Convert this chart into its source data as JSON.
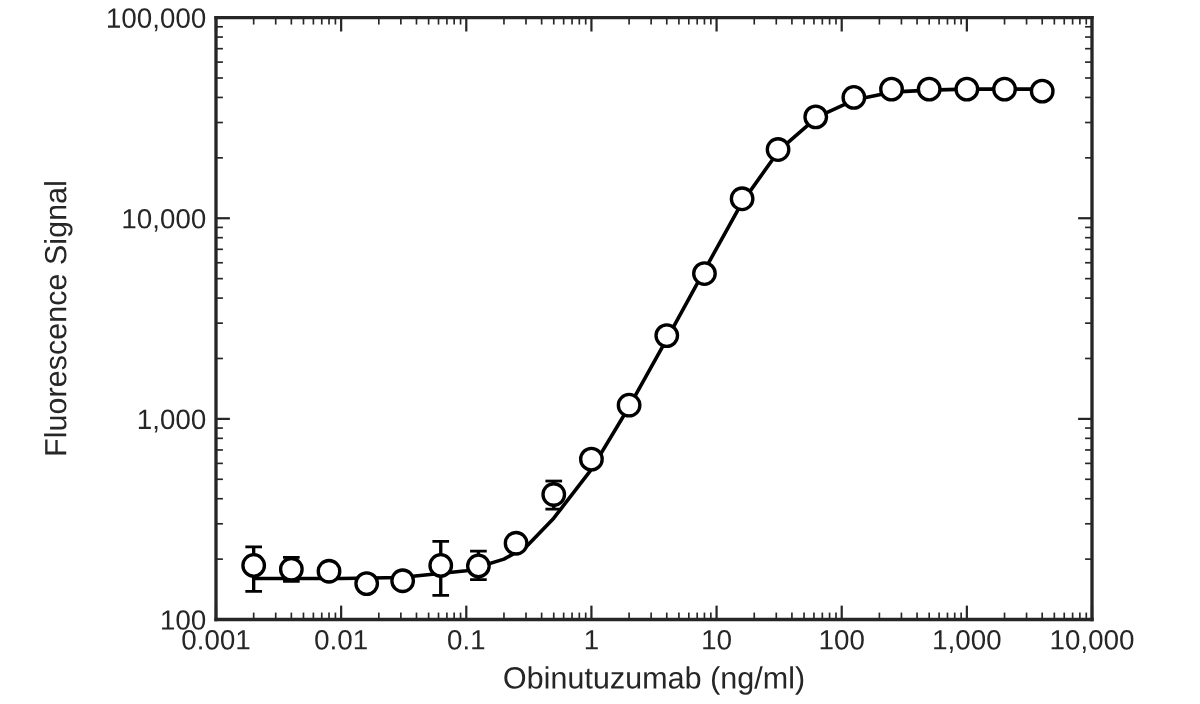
{
  "chart_data": {
    "type": "scatter",
    "xlabel": "Obinutuzumab (ng/ml)",
    "ylabel": "Fluorescence Signal",
    "log": "xy",
    "grid": false,
    "xlim": [
      0.001,
      10000
    ],
    "ylim": [
      100,
      100000
    ],
    "xticks": [
      0.001,
      0.01,
      0.1,
      1,
      10,
      100,
      {
        "value": 1000,
        "label": "1,000"
      },
      {
        "value": 10000,
        "label": "10,000"
      }
    ],
    "yticks": [
      100,
      {
        "value": 1000,
        "label": "1,000"
      },
      {
        "value": 10000,
        "label": "10,000"
      },
      {
        "value": 100000,
        "label": "100,000"
      }
    ],
    "series": [
      {
        "marker": "circle",
        "color": "#000000",
        "x": [
          0.002,
          0.004,
          0.008,
          0.016,
          0.031,
          0.0625,
          0.125,
          0.25,
          0.5,
          1,
          2,
          4,
          8,
          16,
          31,
          62,
          125,
          250,
          500,
          1000,
          2000,
          4000
        ],
        "values": [
          186,
          178,
          174,
          151,
          156,
          186,
          185,
          240,
          420,
          630,
          1170,
          2600,
          5300,
          12500,
          22000,
          32000,
          40000,
          44000,
          44000,
          44000,
          44000,
          43000
        ],
        "errors": [
          [
            138,
            230
          ],
          [
            155,
            204
          ],
          [
            162,
            186
          ],
          [
            143,
            160
          ],
          null,
          [
            132,
            245
          ],
          [
            158,
            219
          ],
          null,
          [
            355,
            490
          ],
          null,
          null,
          null,
          null,
          null,
          null,
          null,
          null,
          null,
          null,
          null,
          null,
          null
        ]
      },
      {
        "type": "line",
        "marker": "none",
        "color": "#000000",
        "line_style": "solid",
        "x": [
          0.002,
          0.01,
          0.03,
          0.1,
          0.2,
          0.3,
          0.5,
          1,
          2,
          4,
          8,
          16,
          32,
          64,
          128,
          250,
          500,
          1000,
          4000
        ],
        "values": [
          160,
          160,
          162,
          175,
          200,
          230,
          320,
          560,
          1150,
          2500,
          5500,
          12000,
          22000,
          32000,
          39000,
          42500,
          43500,
          44000,
          44000
        ]
      }
    ]
  }
}
